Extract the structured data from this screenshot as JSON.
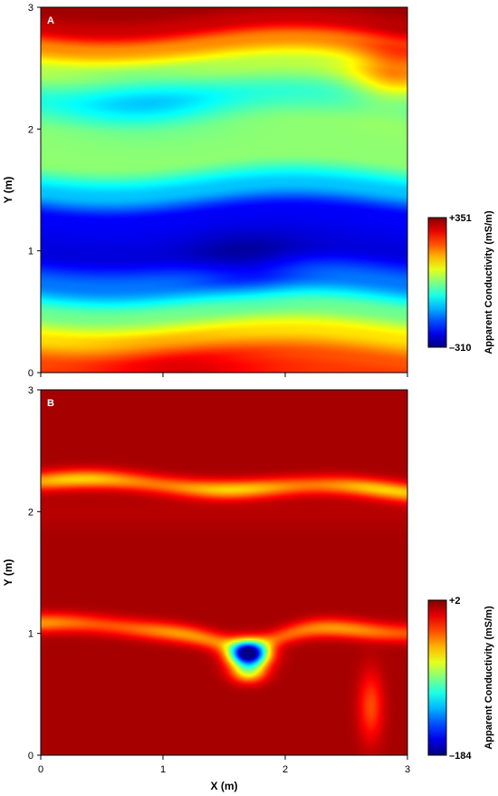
{
  "chart_data": [
    {
      "type": "heatmap",
      "panel_label": "A",
      "xlabel": "",
      "ylabel": "Y (m)",
      "xlim": [
        0,
        3
      ],
      "ylim": [
        0,
        3
      ],
      "x_ticks": [
        "0",
        "1",
        "2",
        "3"
      ],
      "y_ticks": [
        "0",
        "1",
        "2",
        "3"
      ],
      "x_tick_labels_shown": false,
      "colorbar": {
        "label": "Apparent Conductivity (mS/m)",
        "max_label": "+351",
        "min_label": "–310",
        "max": 351,
        "min": -310,
        "colormap": "jet"
      },
      "y_profile": [
        {
          "y": 0.0,
          "value": 230
        },
        {
          "y": 0.1,
          "value": 215
        },
        {
          "y": 0.3,
          "value": 120
        },
        {
          "y": 0.5,
          "value": 10
        },
        {
          "y": 0.75,
          "value": -150
        },
        {
          "y": 1.0,
          "value": -250
        },
        {
          "y": 1.3,
          "value": -230
        },
        {
          "y": 1.5,
          "value": -100
        },
        {
          "y": 1.75,
          "value": 30
        },
        {
          "y": 2.0,
          "value": 30
        },
        {
          "y": 2.25,
          "value": -30
        },
        {
          "y": 2.5,
          "value": 60
        },
        {
          "y": 2.7,
          "value": 180
        },
        {
          "y": 2.85,
          "value": 300
        },
        {
          "y": 3.0,
          "value": 330
        }
      ],
      "anomalies": [
        {
          "x": 1.7,
          "y": 0.85,
          "value": -310
        },
        {
          "x": 0.85,
          "y": 2.25,
          "value": -90
        },
        {
          "x": 1.1,
          "y": 0.05,
          "value": 300
        },
        {
          "x": 2.9,
          "y": 2.45,
          "value": 190
        }
      ]
    },
    {
      "type": "heatmap",
      "panel_label": "B",
      "xlabel": "X (m)",
      "ylabel": "Y (m)",
      "xlim": [
        0,
        3
      ],
      "ylim": [
        0,
        3
      ],
      "x_ticks": [
        "0",
        "1",
        "2",
        "3"
      ],
      "y_ticks": [
        "0",
        "1",
        "2",
        "3"
      ],
      "colorbar": {
        "label": "Apparent Conductivity (mS/m)",
        "max_label": "+2",
        "min_label": "–184",
        "max": 2,
        "min": -184,
        "colormap": "jet"
      },
      "background_value": -5,
      "bands": [
        {
          "y_left": 2.25,
          "y_right": 2.17,
          "value": -55
        },
        {
          "y_left": 1.06,
          "y_right": 1.03,
          "value": -45
        }
      ],
      "anomalies": [
        {
          "x": 1.7,
          "y": 0.83,
          "value": -184
        },
        {
          "x": 1.7,
          "y": 0.68,
          "value": -60
        },
        {
          "x": 2.7,
          "y": 0.4,
          "value": -30
        }
      ]
    }
  ]
}
